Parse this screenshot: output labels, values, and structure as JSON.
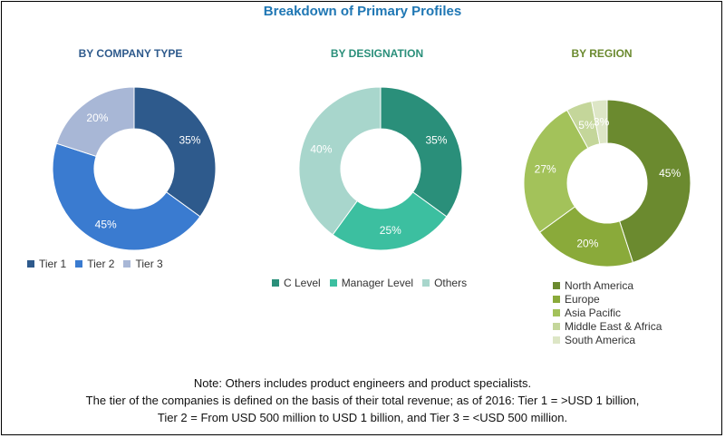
{
  "title": "Breakdown of Primary Profiles",
  "chart_data": [
    {
      "type": "pie",
      "title": "BY COMPANY TYPE",
      "categories": [
        "Tier 1",
        "Tier 2",
        "Tier 3"
      ],
      "values": [
        35,
        45,
        20
      ],
      "labels": [
        "35%",
        "45%",
        "20%"
      ],
      "colors": [
        "#2e5a8c",
        "#3a7bd0",
        "#a8b7d6"
      ],
      "title_color": "#2e5a8c",
      "legend_position": "bottom"
    },
    {
      "type": "pie",
      "title": "BY DESIGNATION",
      "categories": [
        "C Level",
        "Manager Level",
        "Others"
      ],
      "values": [
        35,
        25,
        40
      ],
      "labels": [
        "35%",
        "25%",
        "40%"
      ],
      "colors": [
        "#2a8f7a",
        "#3cbfa0",
        "#a8d6cc"
      ],
      "title_color": "#2a8f7a",
      "legend_position": "bottom"
    },
    {
      "type": "pie",
      "title": "BY REGION",
      "categories": [
        "North America",
        "Europe",
        "Asia Pacific",
        "Middle East & Africa",
        "South America"
      ],
      "values": [
        45,
        20,
        27,
        5,
        3
      ],
      "labels": [
        "45%",
        "20%",
        "27%",
        "5%",
        "3%"
      ],
      "colors": [
        "#6b8a2f",
        "#8aaa3a",
        "#a3c25a",
        "#c4d69a",
        "#dde6c6"
      ],
      "title_color": "#6b8a2f",
      "legend_position": "bottom"
    }
  ],
  "notes": [
    "Note: Others includes product engineers and product specialists.",
    "The tier of the companies is defined on the basis of their total revenue; as of 2016: Tier 1 = >USD 1 billion,",
    "Tier 2 = From USD 500 million to USD 1 billion, and Tier 3 = <USD 500 million."
  ]
}
